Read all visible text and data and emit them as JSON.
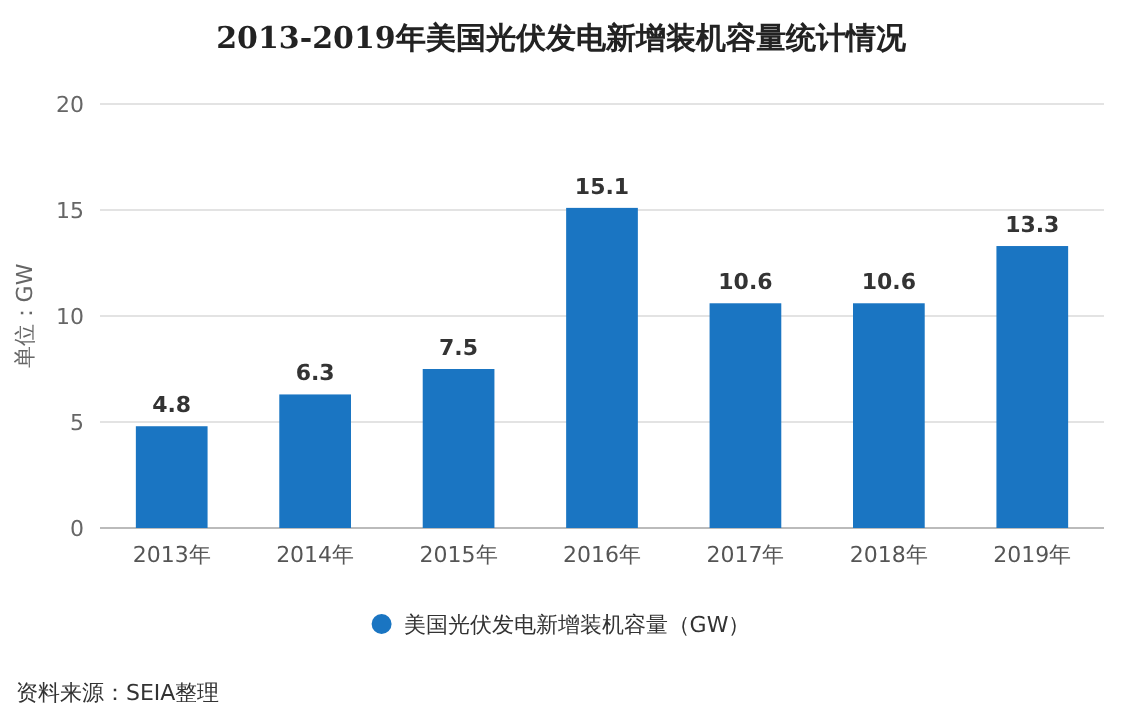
{
  "chart_data": {
    "type": "bar",
    "title": "2013-2019年美国光伏发电新增装机容量统计情况",
    "ylabel": "单位：GW",
    "categories": [
      "2013年",
      "2014年",
      "2015年",
      "2016年",
      "2017年",
      "2018年",
      "2019年"
    ],
    "series": [
      {
        "name": "美国光伏发电新增装机容量（GW）",
        "color": "#1a75c2",
        "values": [
          4.8,
          6.3,
          7.5,
          15.1,
          10.6,
          10.6,
          13.3
        ]
      }
    ],
    "ylim": [
      0,
      20
    ],
    "yticks": [
      0,
      5,
      10,
      15,
      20
    ],
    "grid": "y",
    "legend": "bottom",
    "data_labels": true,
    "annotations": [
      "资料来源：SEIA整理"
    ]
  }
}
